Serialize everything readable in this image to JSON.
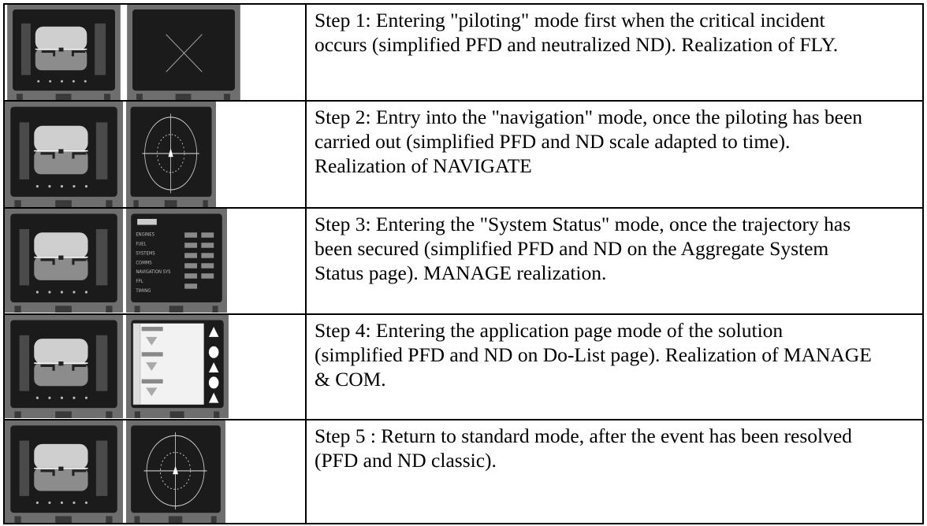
{
  "table": {
    "rows": [
      {
        "text": "Step 1: Entering \"piloting\" mode first when the critical incident occurs (simplified PFD and neutralized ND). Realization of FLY."
      },
      {
        "text": "Step 2: Entry into the \"navigation\" mode, once the piloting has been carried out (simplified PFD and ND scale adapted to time). Realization of NAVIGATE"
      },
      {
        "text": "Step 3: Entering the \"System Status\" mode, once the trajectory has been secured (simplified PFD and ND on the Aggregate System Status page). MANAGE realization.",
        "nd_labels": [
          "ENGINES",
          "FUEL",
          "SYSTEMS",
          "COMMS",
          "NAVIGATION SYS",
          "FPL",
          "TIMING"
        ]
      },
      {
        "text": "Step 4: Entering the application page mode of the solution (simplified PFD and ND on Do-List page). Realization of MANAGE & COM."
      },
      {
        "text": "Step 5 : Return to standard mode, after the event has been resolved (PFD and ND classic)."
      }
    ]
  }
}
